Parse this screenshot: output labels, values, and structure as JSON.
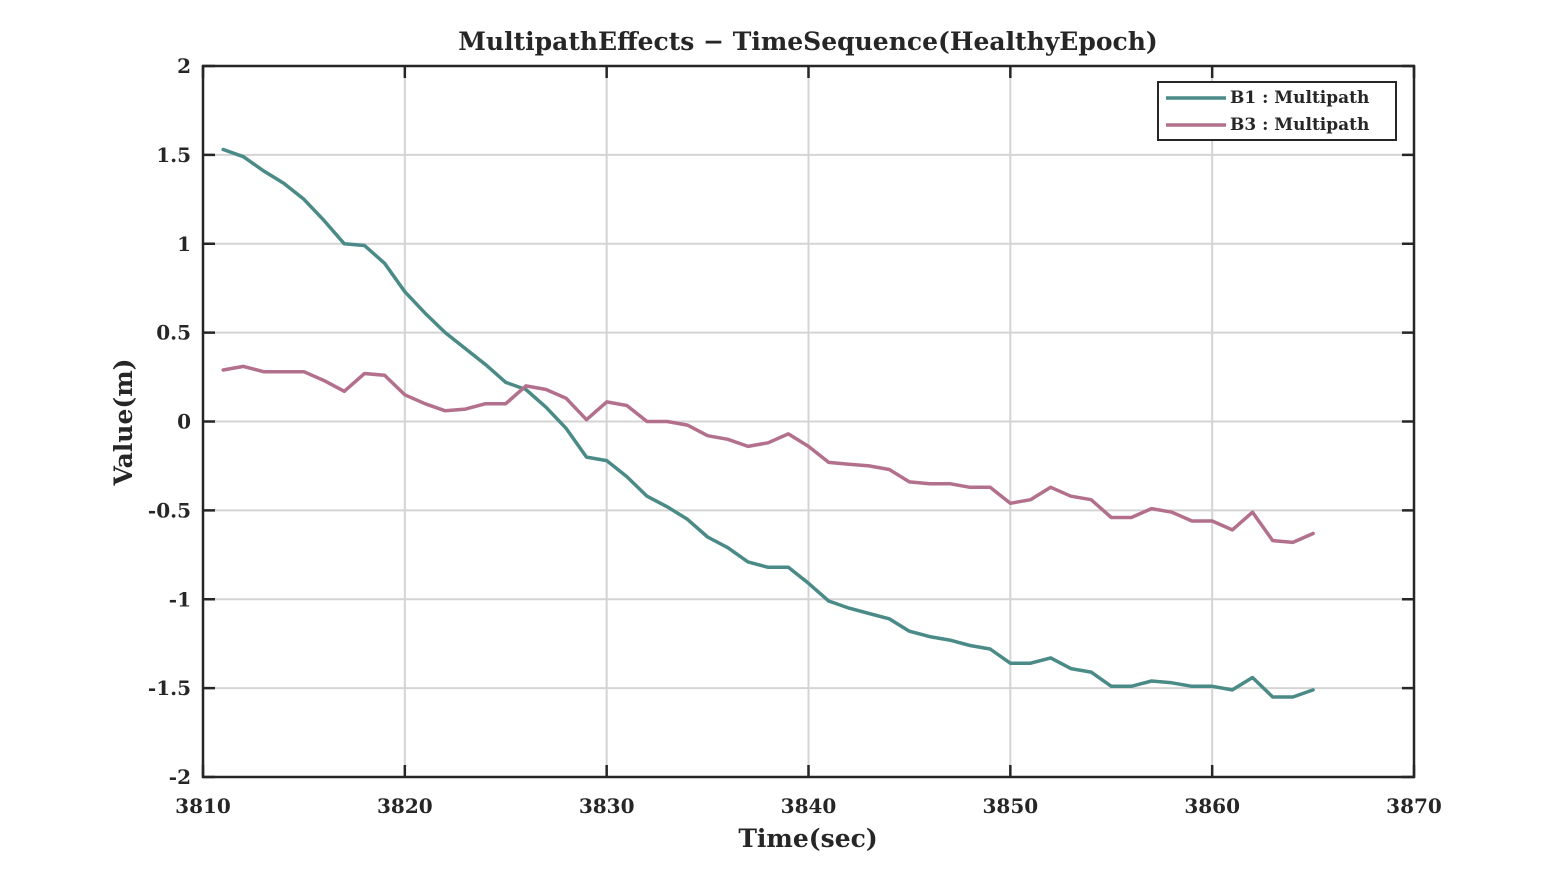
{
  "chart_data": {
    "type": "line",
    "title": "MultipathEffects − TimeSequence(HealthyEpoch)",
    "xlabel": "Time(sec)",
    "ylabel": "Value(m)",
    "xlim": [
      3810,
      3870
    ],
    "ylim": [
      -2,
      2
    ],
    "xticks": [
      3810,
      3820,
      3830,
      3840,
      3850,
      3860,
      3870
    ],
    "yticks": [
      -2,
      -1.5,
      -1,
      -0.5,
      0,
      0.5,
      1,
      1.5,
      2
    ],
    "grid": true,
    "legend_position": "top-right",
    "x": [
      3811,
      3812,
      3813,
      3814,
      3815,
      3816,
      3817,
      3818,
      3819,
      3820,
      3821,
      3822,
      3823,
      3824,
      3825,
      3826,
      3827,
      3828,
      3829,
      3830,
      3831,
      3832,
      3833,
      3834,
      3835,
      3836,
      3837,
      3838,
      3839,
      3840,
      3841,
      3842,
      3843,
      3844,
      3845,
      3846,
      3847,
      3848,
      3849,
      3850,
      3851,
      3852,
      3853,
      3854,
      3855,
      3856,
      3857,
      3858,
      3859,
      3860,
      3861,
      3862,
      3863,
      3864,
      3865
    ],
    "series": [
      {
        "name": "B1 : Multipath",
        "color": "#4a8a87",
        "values": [
          1.53,
          1.49,
          1.41,
          1.34,
          1.25,
          1.13,
          1.0,
          0.99,
          0.89,
          0.73,
          0.61,
          0.5,
          0.41,
          0.32,
          0.22,
          0.18,
          0.08,
          -0.04,
          -0.2,
          -0.22,
          -0.31,
          -0.42,
          -0.48,
          -0.55,
          -0.65,
          -0.71,
          -0.79,
          -0.82,
          -0.82,
          -0.91,
          -1.01,
          -1.05,
          -1.08,
          -1.11,
          -1.18,
          -1.21,
          -1.23,
          -1.26,
          -1.28,
          -1.36,
          -1.36,
          -1.33,
          -1.39,
          -1.41,
          -1.49,
          -1.49,
          -1.46,
          -1.47,
          -1.49,
          -1.49,
          -1.51,
          -1.44,
          -1.55,
          -1.55,
          -1.51
        ]
      },
      {
        "name": "B3 : Multipath",
        "color": "#b3708c",
        "values": [
          0.29,
          0.31,
          0.28,
          0.28,
          0.28,
          0.23,
          0.17,
          0.27,
          0.26,
          0.15,
          0.1,
          0.06,
          0.07,
          0.1,
          0.1,
          0.2,
          0.18,
          0.13,
          0.01,
          0.11,
          0.09,
          0.0,
          0.0,
          -0.02,
          -0.08,
          -0.1,
          -0.14,
          -0.12,
          -0.07,
          -0.14,
          -0.23,
          -0.24,
          -0.25,
          -0.27,
          -0.34,
          -0.35,
          -0.35,
          -0.37,
          -0.37,
          -0.46,
          -0.44,
          -0.37,
          -0.42,
          -0.44,
          -0.54,
          -0.54,
          -0.49,
          -0.51,
          -0.56,
          -0.56,
          -0.61,
          -0.51,
          -0.67,
          -0.68,
          -0.63
        ]
      }
    ]
  }
}
